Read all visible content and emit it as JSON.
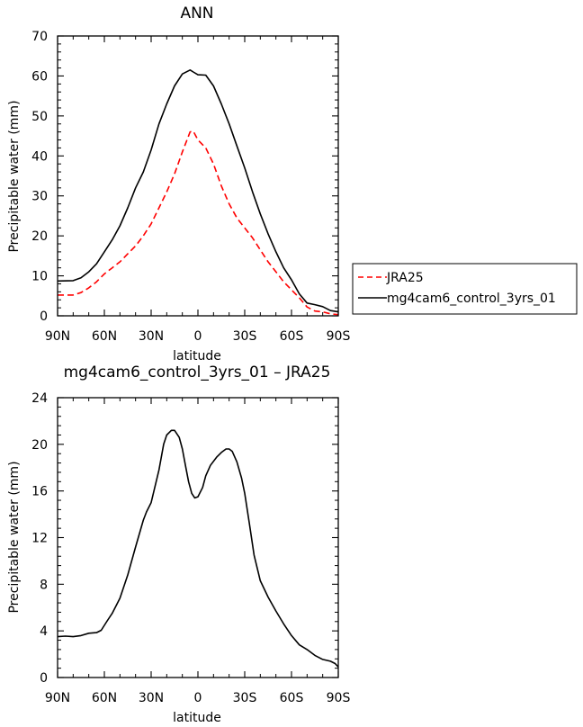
{
  "chart_data": [
    {
      "type": "line",
      "title": "ANN",
      "xlabel": "latitude",
      "ylabel": "Precipitable water (mm)",
      "xlim": [
        90,
        -90
      ],
      "ylim": [
        0,
        70
      ],
      "x_ticks": [
        90,
        60,
        30,
        0,
        -30,
        -60,
        -90
      ],
      "x_tick_labels": [
        "90N",
        "60N",
        "30N",
        "0",
        "30S",
        "60S",
        "90S"
      ],
      "y_ticks": [
        0,
        10,
        20,
        30,
        40,
        50,
        60,
        70
      ],
      "y_tick_labels": [
        "0",
        "10",
        "20",
        "30",
        "40",
        "50",
        "60",
        "70"
      ],
      "grid": false,
      "legend": "right",
      "series": [
        {
          "name": "JRA25",
          "color": "#ff0000",
          "style": "dashed",
          "x": [
            90,
            80,
            75,
            70,
            65,
            60,
            55,
            50,
            45,
            40,
            35,
            30,
            25,
            20,
            15,
            10,
            5,
            3,
            0,
            -5,
            -10,
            -15,
            -20,
            -25,
            -30,
            -35,
            -40,
            -45,
            -50,
            -55,
            -60,
            -65,
            -70,
            -75,
            -80,
            -85,
            -90
          ],
          "y": [
            5.2,
            5.2,
            5.8,
            7,
            8.5,
            10.5,
            12,
            13.5,
            15.5,
            17.5,
            20,
            23,
            27,
            31,
            35.5,
            41,
            46,
            46.2,
            44,
            42,
            38,
            32.5,
            28,
            24.5,
            22,
            19.5,
            16.5,
            13.5,
            11,
            8.5,
            6.5,
            4.5,
            2.2,
            1.2,
            1,
            0.5,
            0.3
          ]
        },
        {
          "name": "mg4cam6_control_3yrs_01",
          "color": "#000000",
          "style": "solid",
          "x": [
            90,
            80,
            75,
            70,
            65,
            60,
            55,
            50,
            45,
            40,
            35,
            30,
            25,
            20,
            15,
            10,
            5,
            3,
            0,
            -5,
            -10,
            -15,
            -20,
            -25,
            -30,
            -35,
            -40,
            -45,
            -50,
            -55,
            -60,
            -65,
            -70,
            -75,
            -80,
            -85,
            -90
          ],
          "y": [
            8.7,
            8.8,
            9.5,
            11,
            13,
            16,
            19,
            22.5,
            27,
            32,
            36,
            41.5,
            48,
            53,
            57.5,
            60.5,
            61.5,
            61,
            60.3,
            60.2,
            57.5,
            53,
            48,
            42.5,
            37,
            31,
            25.5,
            20.5,
            16,
            12,
            9,
            5.5,
            3.2,
            2.8,
            2.3,
            1.3,
            1
          ]
        }
      ]
    },
    {
      "type": "line",
      "title": "mg4cam6_control_3yrs_01 – JRA25",
      "xlabel": "latitude",
      "ylabel": "Precipitable water (mm)",
      "xlim": [
        90,
        -90
      ],
      "ylim": [
        0,
        24
      ],
      "x_ticks": [
        90,
        60,
        30,
        0,
        -30,
        -60,
        -90
      ],
      "x_tick_labels": [
        "90N",
        "60N",
        "30N",
        "0",
        "30S",
        "60S",
        "90S"
      ],
      "y_ticks": [
        0,
        4,
        8,
        12,
        16,
        20,
        24
      ],
      "y_tick_labels": [
        "0",
        "4",
        "8",
        "12",
        "16",
        "20",
        "24"
      ],
      "grid": false,
      "legend": "none",
      "series": [
        {
          "color": "#000000",
          "style": "solid",
          "x": [
            90,
            85,
            80,
            75,
            70,
            65,
            62,
            58,
            55,
            50,
            45,
            40,
            35,
            33,
            30,
            25,
            22,
            20,
            17,
            15,
            12,
            10,
            8,
            6,
            4,
            2,
            0,
            -3,
            -5,
            -8,
            -12,
            -15,
            -18,
            -20,
            -22,
            -25,
            -28,
            -30,
            -33,
            -36,
            -40,
            -45,
            -50,
            -55,
            -60,
            -65,
            -70,
            -75,
            -80,
            -85,
            -88,
            -90
          ],
          "y": [
            3.5,
            3.55,
            3.5,
            3.6,
            3.8,
            3.85,
            4.05,
            4.9,
            5.5,
            6.8,
            8.8,
            11.2,
            13.5,
            14.2,
            15,
            17.8,
            20.0,
            20.8,
            21.2,
            21.2,
            20.6,
            19.6,
            18.2,
            16.8,
            15.8,
            15.4,
            15.5,
            16.3,
            17.3,
            18.2,
            18.9,
            19.3,
            19.6,
            19.6,
            19.4,
            18.5,
            17.1,
            15.8,
            13.2,
            10.5,
            8.3,
            6.9,
            5.7,
            4.6,
            3.6,
            2.8,
            2.4,
            1.9,
            1.55,
            1.4,
            1.2,
            0.9
          ]
        }
      ]
    }
  ]
}
